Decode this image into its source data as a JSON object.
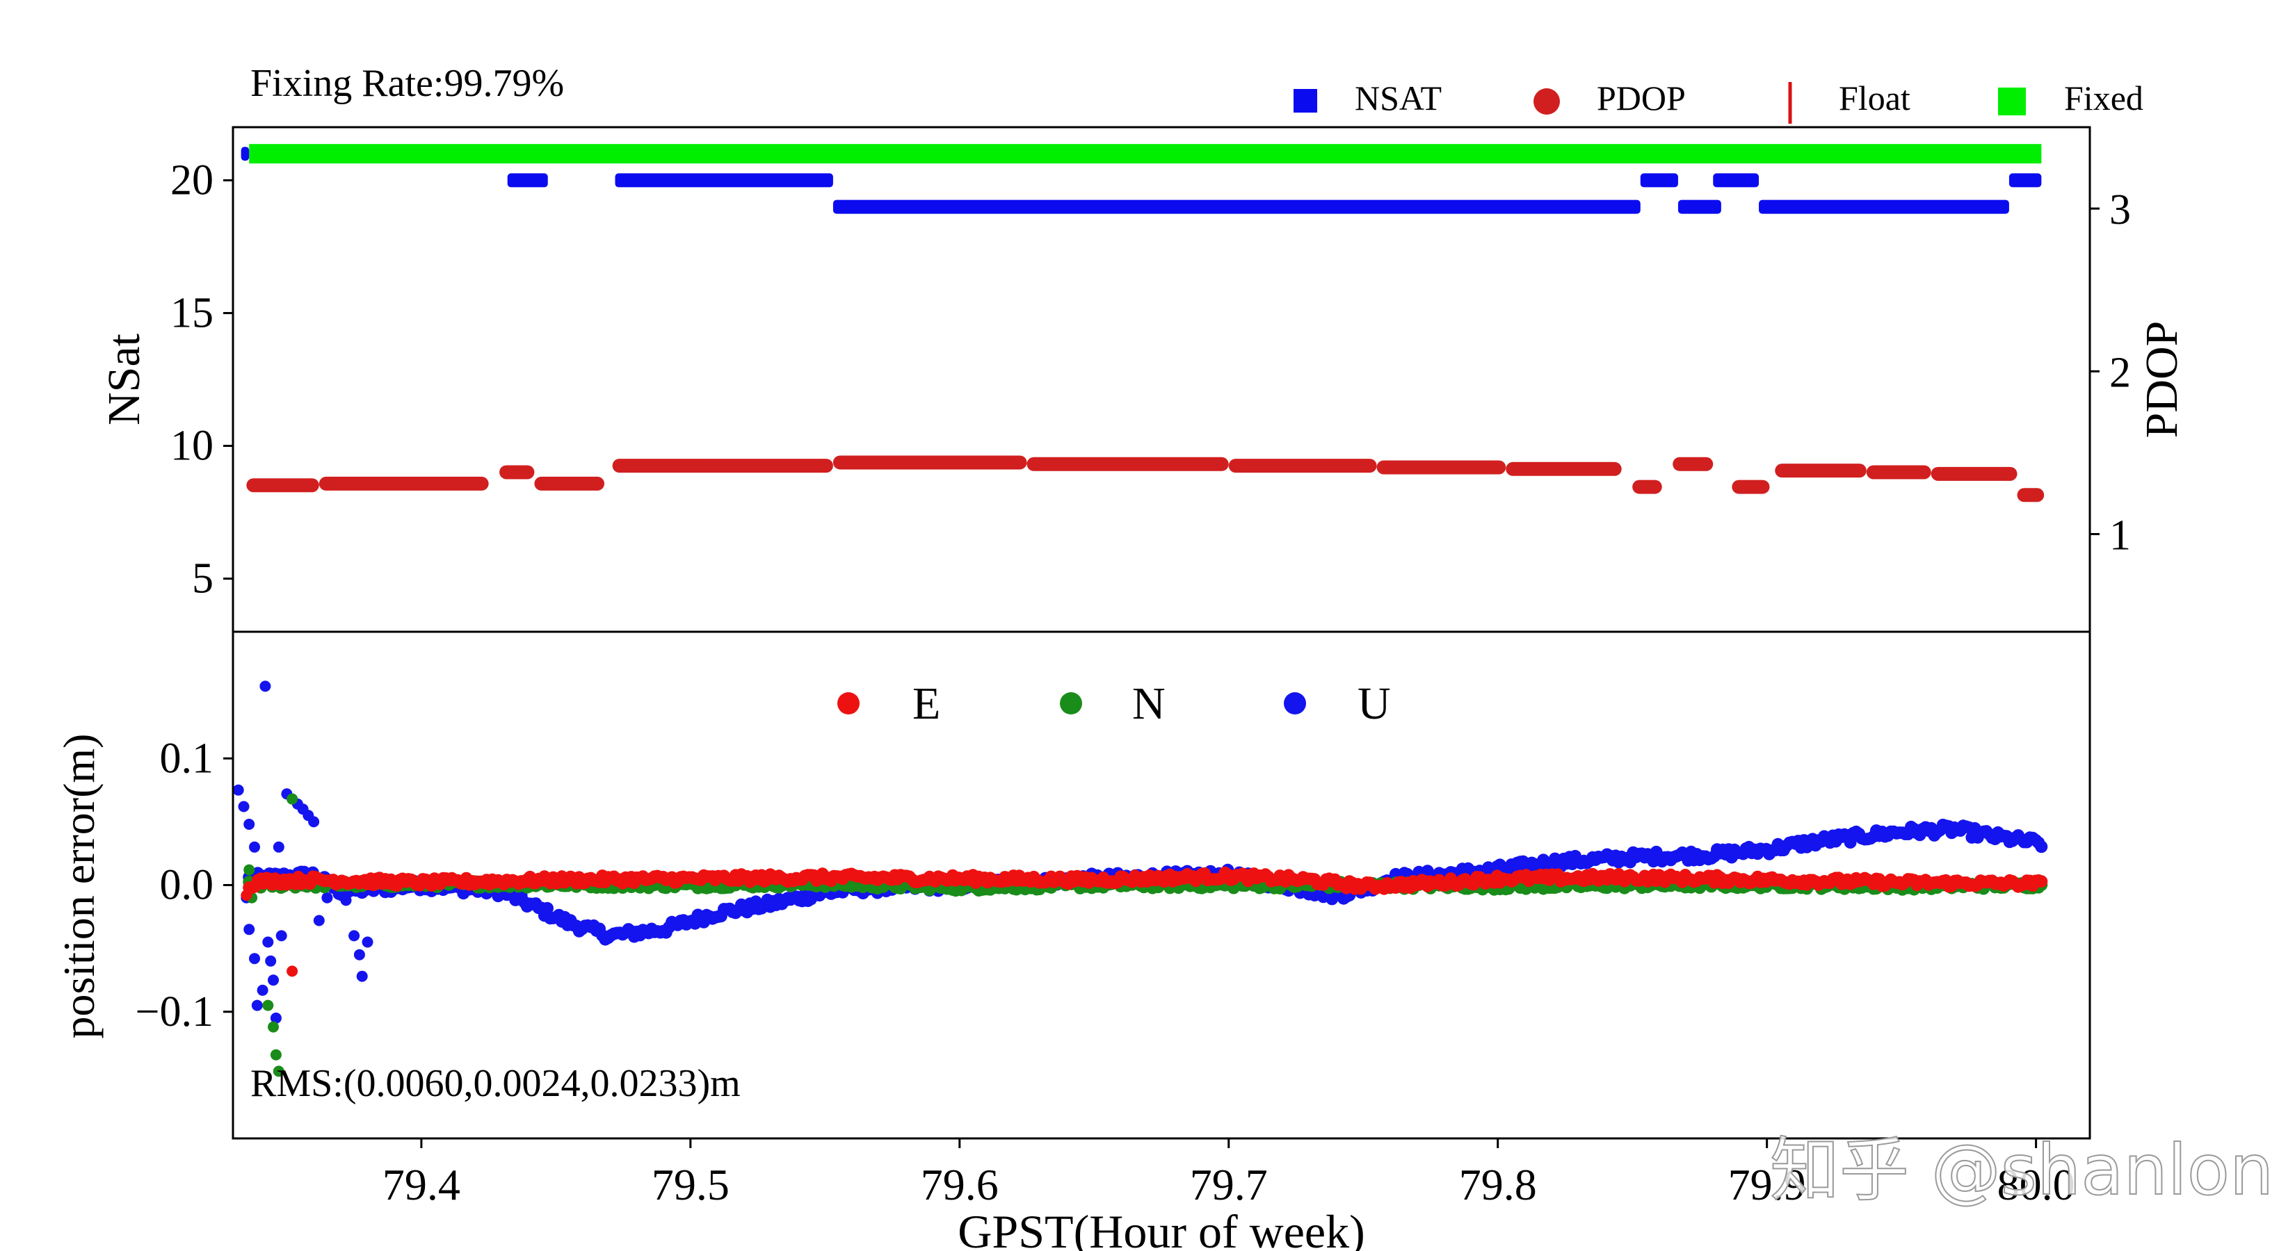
{
  "chart_data": [
    {
      "type": "scatter",
      "title": "Fixing Rate:99.79%",
      "xlim": [
        79.33,
        80.02
      ],
      "ylabel": "NSat",
      "ylim": [
        3,
        22
      ],
      "yticks": [
        "5",
        "10",
        "15",
        "20"
      ],
      "y2label": "PDOP",
      "y2lim": [
        0.4,
        3.5
      ],
      "y2ticks": [
        "1",
        "2",
        "3"
      ],
      "legend": [
        {
          "label": "NSAT",
          "color": "#0b0bf0",
          "marker": "square"
        },
        {
          "label": "PDOP",
          "color": "#d11f1f",
          "marker": "circle"
        },
        {
          "label": "Float",
          "color": "#dd1111",
          "marker": "vline"
        },
        {
          "label": "Fixed",
          "color": "#00ee00",
          "marker": "square"
        }
      ],
      "fixed": {
        "value": 21.0,
        "segments": [
          [
            79.336,
            80.002
          ]
        ]
      },
      "nsat_segments": [
        {
          "value": 21,
          "x": [
            79.333,
            79.336
          ]
        },
        {
          "value": 20,
          "x": [
            79.432,
            79.447
          ]
        },
        {
          "value": 20,
          "x": [
            79.472,
            79.553
          ]
        },
        {
          "value": 19,
          "x": [
            79.553,
            79.853
          ]
        },
        {
          "value": 20,
          "x": [
            79.853,
            79.867
          ]
        },
        {
          "value": 19,
          "x": [
            79.867,
            79.883
          ]
        },
        {
          "value": 20,
          "x": [
            79.88,
            79.897
          ]
        },
        {
          "value": 19,
          "x": [
            79.897,
            79.99
          ]
        },
        {
          "value": 20,
          "x": [
            79.99,
            80.002
          ]
        }
      ],
      "pdop_segments": [
        {
          "value": 1.3,
          "x": [
            79.335,
            79.362
          ]
        },
        {
          "value": 1.31,
          "x": [
            79.362,
            79.425
          ]
        },
        {
          "value": 1.38,
          "x": [
            79.429,
            79.442
          ]
        },
        {
          "value": 1.31,
          "x": [
            79.442,
            79.468
          ]
        },
        {
          "value": 1.42,
          "x": [
            79.471,
            79.553
          ]
        },
        {
          "value": 1.44,
          "x": [
            79.553,
            79.625
          ]
        },
        {
          "value": 1.43,
          "x": [
            79.625,
            79.7
          ]
        },
        {
          "value": 1.42,
          "x": [
            79.7,
            79.755
          ]
        },
        {
          "value": 1.41,
          "x": [
            79.755,
            79.803
          ]
        },
        {
          "value": 1.4,
          "x": [
            79.803,
            79.846
          ]
        },
        {
          "value": 1.29,
          "x": [
            79.85,
            79.861
          ]
        },
        {
          "value": 1.43,
          "x": [
            79.865,
            79.88
          ]
        },
        {
          "value": 1.29,
          "x": [
            79.887,
            79.901
          ]
        },
        {
          "value": 1.39,
          "x": [
            79.903,
            79.937
          ]
        },
        {
          "value": 1.38,
          "x": [
            79.937,
            79.961
          ]
        },
        {
          "value": 1.37,
          "x": [
            79.961,
            79.993
          ]
        },
        {
          "value": 1.24,
          "x": [
            79.993,
            80.003
          ]
        }
      ]
    },
    {
      "type": "scatter",
      "xlabel": "GPST(Hour of week)",
      "xlim": [
        79.33,
        80.02
      ],
      "xticks": [
        "79.4",
        "79.5",
        "79.6",
        "79.7",
        "79.8",
        "79.9",
        "80.0"
      ],
      "ylabel": "position error(m)",
      "ylim": [
        -0.2,
        0.2
      ],
      "yticks": [
        "0.1",
        "0.0",
        "−0.1"
      ],
      "annotation": "RMS:(0.0060,0.0024,0.0233)m",
      "series": [
        {
          "name": "E",
          "color": "#ee1111",
          "trend": [
            [
              79.336,
              0.0
            ],
            [
              79.34,
              0.003
            ],
            [
              79.36,
              0.004
            ],
            [
              79.4,
              0.002
            ],
            [
              79.45,
              0.004
            ],
            [
              79.5,
              0.005
            ],
            [
              79.55,
              0.006
            ],
            [
              79.6,
              0.005
            ],
            [
              79.65,
              0.004
            ],
            [
              79.7,
              0.007
            ],
            [
              79.73,
              0.004
            ],
            [
              79.75,
              -0.001
            ],
            [
              79.78,
              0.002
            ],
            [
              79.8,
              0.005
            ],
            [
              79.85,
              0.006
            ],
            [
              79.9,
              0.004
            ],
            [
              79.95,
              0.002
            ],
            [
              80.002,
              0.001
            ]
          ],
          "noise": 0.003,
          "outliers": [
            [
              79.335,
              -0.008
            ],
            [
              79.352,
              -0.068
            ]
          ]
        },
        {
          "name": "N",
          "color": "#1a8c1a",
          "trend": [
            [
              79.336,
              0.0
            ],
            [
              79.4,
              0.001
            ],
            [
              79.5,
              0.0
            ],
            [
              79.55,
              0.001
            ],
            [
              79.6,
              -0.002
            ],
            [
              79.65,
              0.0
            ],
            [
              79.7,
              0.0
            ],
            [
              79.75,
              0.0
            ],
            [
              79.8,
              -0.001
            ],
            [
              79.85,
              0.0
            ],
            [
              79.9,
              0.0
            ],
            [
              79.95,
              -0.001
            ],
            [
              80.002,
              0.0
            ]
          ],
          "noise": 0.0025,
          "outliers": [
            [
              79.336,
              0.012
            ],
            [
              79.343,
              -0.095
            ],
            [
              79.345,
              -0.112
            ],
            [
              79.346,
              -0.134
            ],
            [
              79.347,
              -0.147
            ],
            [
              79.352,
              0.068
            ],
            [
              79.337,
              -0.01
            ]
          ]
        },
        {
          "name": "U",
          "color": "#1414ee",
          "trend": [
            [
              79.336,
              0.005
            ],
            [
              79.36,
              0.008
            ],
            [
              79.37,
              -0.005
            ],
            [
              79.4,
              0.0
            ],
            [
              79.43,
              -0.005
            ],
            [
              79.44,
              -0.015
            ],
            [
              79.455,
              -0.03
            ],
            [
              79.47,
              -0.04
            ],
            [
              79.49,
              -0.035
            ],
            [
              79.51,
              -0.022
            ],
            [
              79.53,
              -0.015
            ],
            [
              79.545,
              -0.008
            ],
            [
              79.56,
              -0.003
            ],
            [
              79.6,
              0.0
            ],
            [
              79.65,
              0.005
            ],
            [
              79.7,
              0.008
            ],
            [
              79.72,
              0.0
            ],
            [
              79.74,
              -0.008
            ],
            [
              79.75,
              -0.003
            ],
            [
              79.76,
              0.005
            ],
            [
              79.8,
              0.012
            ],
            [
              79.82,
              0.018
            ],
            [
              79.85,
              0.022
            ],
            [
              79.88,
              0.024
            ],
            [
              79.9,
              0.028
            ],
            [
              79.92,
              0.035
            ],
            [
              79.95,
              0.042
            ],
            [
              79.97,
              0.044
            ],
            [
              79.985,
              0.038
            ],
            [
              80.002,
              0.033
            ]
          ],
          "noise": 0.004,
          "outliers": [
            [
              79.332,
              0.075
            ],
            [
              79.334,
              0.062
            ],
            [
              79.336,
              0.048
            ],
            [
              79.338,
              0.03
            ],
            [
              79.335,
              -0.01
            ],
            [
              79.336,
              -0.035
            ],
            [
              79.338,
              -0.058
            ],
            [
              79.339,
              -0.095
            ],
            [
              79.341,
              -0.083
            ],
            [
              79.342,
              0.157
            ],
            [
              79.343,
              -0.045
            ],
            [
              79.344,
              -0.06
            ],
            [
              79.345,
              -0.075
            ],
            [
              79.346,
              -0.105
            ],
            [
              79.347,
              0.03
            ],
            [
              79.348,
              -0.04
            ],
            [
              79.35,
              0.072
            ],
            [
              79.352,
              0.068
            ],
            [
              79.354,
              0.064
            ],
            [
              79.356,
              0.06
            ],
            [
              79.358,
              0.055
            ],
            [
              79.36,
              0.05
            ],
            [
              79.362,
              -0.028
            ],
            [
              79.365,
              -0.01
            ],
            [
              79.372,
              -0.012
            ],
            [
              79.375,
              -0.04
            ],
            [
              79.377,
              -0.055
            ],
            [
              79.378,
              -0.072
            ],
            [
              79.38,
              -0.045
            ]
          ]
        }
      ],
      "legend": [
        "E",
        "N",
        "U"
      ]
    }
  ],
  "watermark": "知乎 @shanlon"
}
